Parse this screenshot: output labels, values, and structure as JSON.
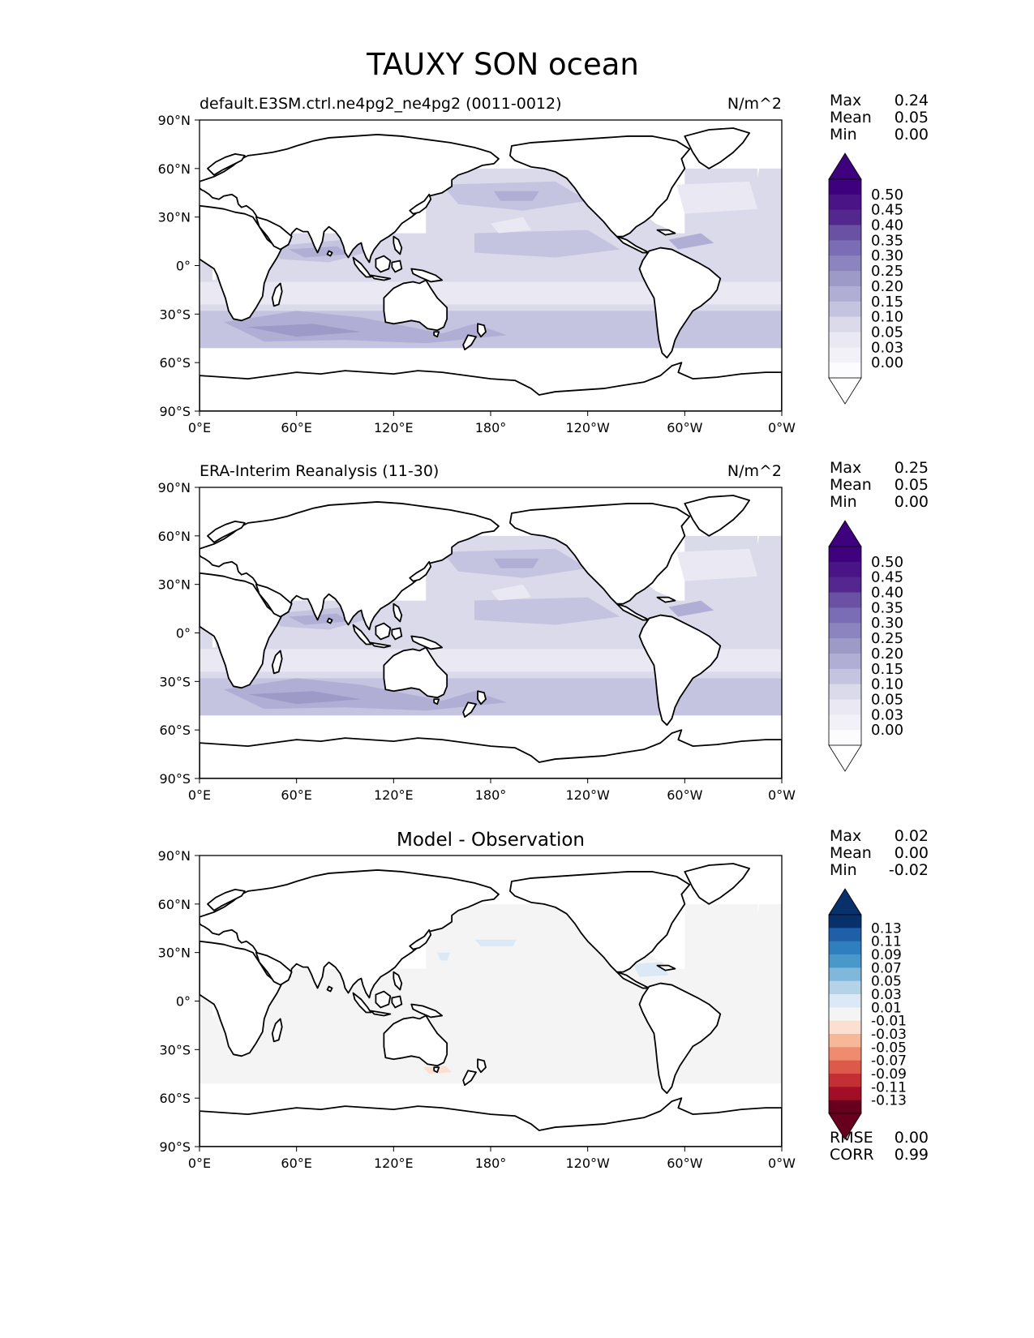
{
  "title": "TAUXY SON ocean",
  "axes": {
    "lon_ticks": [
      "0°E",
      "60°E",
      "120°E",
      "180°",
      "120°W",
      "60°W",
      "0°W"
    ],
    "lat_ticks": [
      "90°N",
      "60°N",
      "30°N",
      "0°",
      "30°S",
      "60°S",
      "90°S"
    ]
  },
  "panels": [
    {
      "left_title": "default.E3SM.ctrl.ne4pg2_ne4pg2 (0011-0012)",
      "right_title": "N/m^2",
      "center_title": "",
      "stats": [
        {
          "label": "Max",
          "value": "0.24"
        },
        {
          "label": "Mean",
          "value": "0.05"
        },
        {
          "label": "Min",
          "value": "0.00"
        }
      ],
      "colorbar": {
        "ticks": [
          "0.50",
          "0.45",
          "0.40",
          "0.35",
          "0.30",
          "0.25",
          "0.20",
          "0.15",
          "0.10",
          "0.05",
          "0.03",
          "0.00"
        ],
        "colors": [
          "#3f007d",
          "#4a1486",
          "#54278f",
          "#6a51a3",
          "#7b6db5",
          "#8c84bf",
          "#9e9ac8",
          "#b0aed4",
          "#c4c3e0",
          "#dadaeb",
          "#e9e8f3",
          "#f2f1f8",
          "#fcfbfd"
        ],
        "extend_top": "#3f007d",
        "extend_bottom": "#ffffff"
      }
    },
    {
      "left_title": "ERA-Interim Reanalysis (11-30)",
      "right_title": "N/m^2",
      "center_title": "",
      "stats": [
        {
          "label": "Max",
          "value": "0.25"
        },
        {
          "label": "Mean",
          "value": "0.05"
        },
        {
          "label": "Min",
          "value": "0.00"
        }
      ],
      "colorbar": {
        "ticks": [
          "0.50",
          "0.45",
          "0.40",
          "0.35",
          "0.30",
          "0.25",
          "0.20",
          "0.15",
          "0.10",
          "0.05",
          "0.03",
          "0.00"
        ],
        "colors": [
          "#3f007d",
          "#4a1486",
          "#54278f",
          "#6a51a3",
          "#7b6db5",
          "#8c84bf",
          "#9e9ac8",
          "#b0aed4",
          "#c4c3e0",
          "#dadaeb",
          "#e9e8f3",
          "#f2f1f8",
          "#fcfbfd"
        ],
        "extend_top": "#3f007d",
        "extend_bottom": "#ffffff"
      }
    },
    {
      "left_title": "",
      "right_title": "",
      "center_title": "Model - Observation",
      "stats": [
        {
          "label": "Max",
          "value": "0.02"
        },
        {
          "label": "Mean",
          "value": "0.00"
        },
        {
          "label": "Min",
          "value": "-0.02"
        }
      ],
      "extra_stats": [
        {
          "label": "RMSE",
          "value": "0.00"
        },
        {
          "label": "CORR",
          "value": "0.99"
        }
      ],
      "colorbar": {
        "ticks": [
          "0.13",
          "0.11",
          "0.09",
          "0.07",
          "0.05",
          "0.03",
          "0.01",
          "-0.01",
          "-0.03",
          "-0.05",
          "-0.07",
          "-0.09",
          "-0.11",
          "-0.13"
        ],
        "colors": [
          "#08306b",
          "#1f5fa8",
          "#2f7ebd",
          "#4a98c9",
          "#7fb8da",
          "#b5d3e8",
          "#dbe9f6",
          "#f4f4f4",
          "#fbe0d1",
          "#f7b799",
          "#ef8c6f",
          "#dd5a4b",
          "#c42f33",
          "#a20e25",
          "#67001f"
        ],
        "extend_top": "#08306b",
        "extend_bottom": "#67001f"
      }
    }
  ],
  "map_data": {
    "type": "global_contour_map",
    "projection": "PlateCarree",
    "variable": "TAUXY",
    "season": "SON",
    "region": "ocean",
    "units": "N/m^2",
    "lon_range": [
      0,
      360
    ],
    "lat_range": [
      -90,
      90
    ]
  }
}
